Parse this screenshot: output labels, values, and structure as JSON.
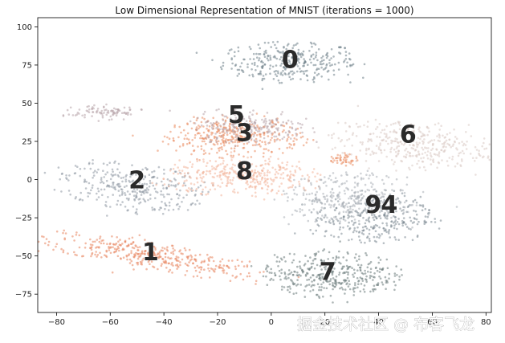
{
  "chart_data": {
    "type": "scatter",
    "title": "Low Dimensional Representation of MNIST (iterations = 1000)",
    "xlim": [
      -87,
      82
    ],
    "ylim": [
      -87,
      106
    ],
    "xticks": [
      -80,
      -60,
      -40,
      -20,
      0,
      20,
      40,
      60,
      80
    ],
    "yticks": [
      -75,
      -50,
      -25,
      0,
      25,
      50,
      75,
      100
    ],
    "grid": false,
    "legend": "none",
    "colors": {
      "0": "#6e7f89",
      "1": "#e8845c",
      "2": "#8e98a3",
      "3": "#ea8a5e",
      "4": "#7e8a94",
      "5": "#b7a2a8",
      "6": "#d8c8c3",
      "7": "#6a7a7a",
      "8": "#f2b49a",
      "9": "#a9afb6"
    },
    "clusters": [
      {
        "digit": "0",
        "cx": 7,
        "cy": 77,
        "rx": 25,
        "ry": 13,
        "n": 320,
        "label_x": 7,
        "label_y": 79
      },
      {
        "digit": "1",
        "cx": -45,
        "cy": -50,
        "rx": 45,
        "ry": 9,
        "n": 380,
        "angle": -17,
        "label_x": -45,
        "label_y": -47
      },
      {
        "digit": "2",
        "cx": -52,
        "cy": -5,
        "rx": 28,
        "ry": 16,
        "n": 320,
        "angle": -12,
        "label_x": -50,
        "label_y": 0
      },
      {
        "digit": "3",
        "cx": -14,
        "cy": 28,
        "rx": 25,
        "ry": 13,
        "n": 360,
        "label_x": -10,
        "label_y": 31
      },
      {
        "digit": "4",
        "cx": 38,
        "cy": -25,
        "rx": 22,
        "ry": 17,
        "n": 320,
        "label_x": 44,
        "label_y": -16
      },
      {
        "digit": "5",
        "cx": -8,
        "cy": 35,
        "rx": 22,
        "ry": 12,
        "n": 220,
        "label_x": -13,
        "label_y": 43
      },
      {
        "digit": "6",
        "cx": 52,
        "cy": 23,
        "rx": 30,
        "ry": 15,
        "n": 360,
        "angle": -10,
        "label_x": 51,
        "label_y": 30
      },
      {
        "digit": "7",
        "cx": 22,
        "cy": -62,
        "rx": 25,
        "ry": 15,
        "n": 380,
        "label_x": 21,
        "label_y": -60
      },
      {
        "digit": "8",
        "cx": -10,
        "cy": 2,
        "rx": 30,
        "ry": 12,
        "n": 360,
        "label_x": -10,
        "label_y": 6
      },
      {
        "digit": "9",
        "cx": 28,
        "cy": -12,
        "rx": 24,
        "ry": 16,
        "n": 300,
        "label_x": 38,
        "label_y": -16
      },
      {
        "digit": "",
        "color_key": "5",
        "cx": -62,
        "cy": 44,
        "rx": 14,
        "ry": 5,
        "n": 90,
        "label_x": null,
        "label_y": null
      },
      {
        "digit": "",
        "color_key": "3",
        "cx": 27,
        "cy": 13,
        "rx": 5,
        "ry": 4,
        "n": 45,
        "label_x": null,
        "label_y": null
      }
    ],
    "watermark": "掘金技术社区 @ 布客飞龙"
  }
}
